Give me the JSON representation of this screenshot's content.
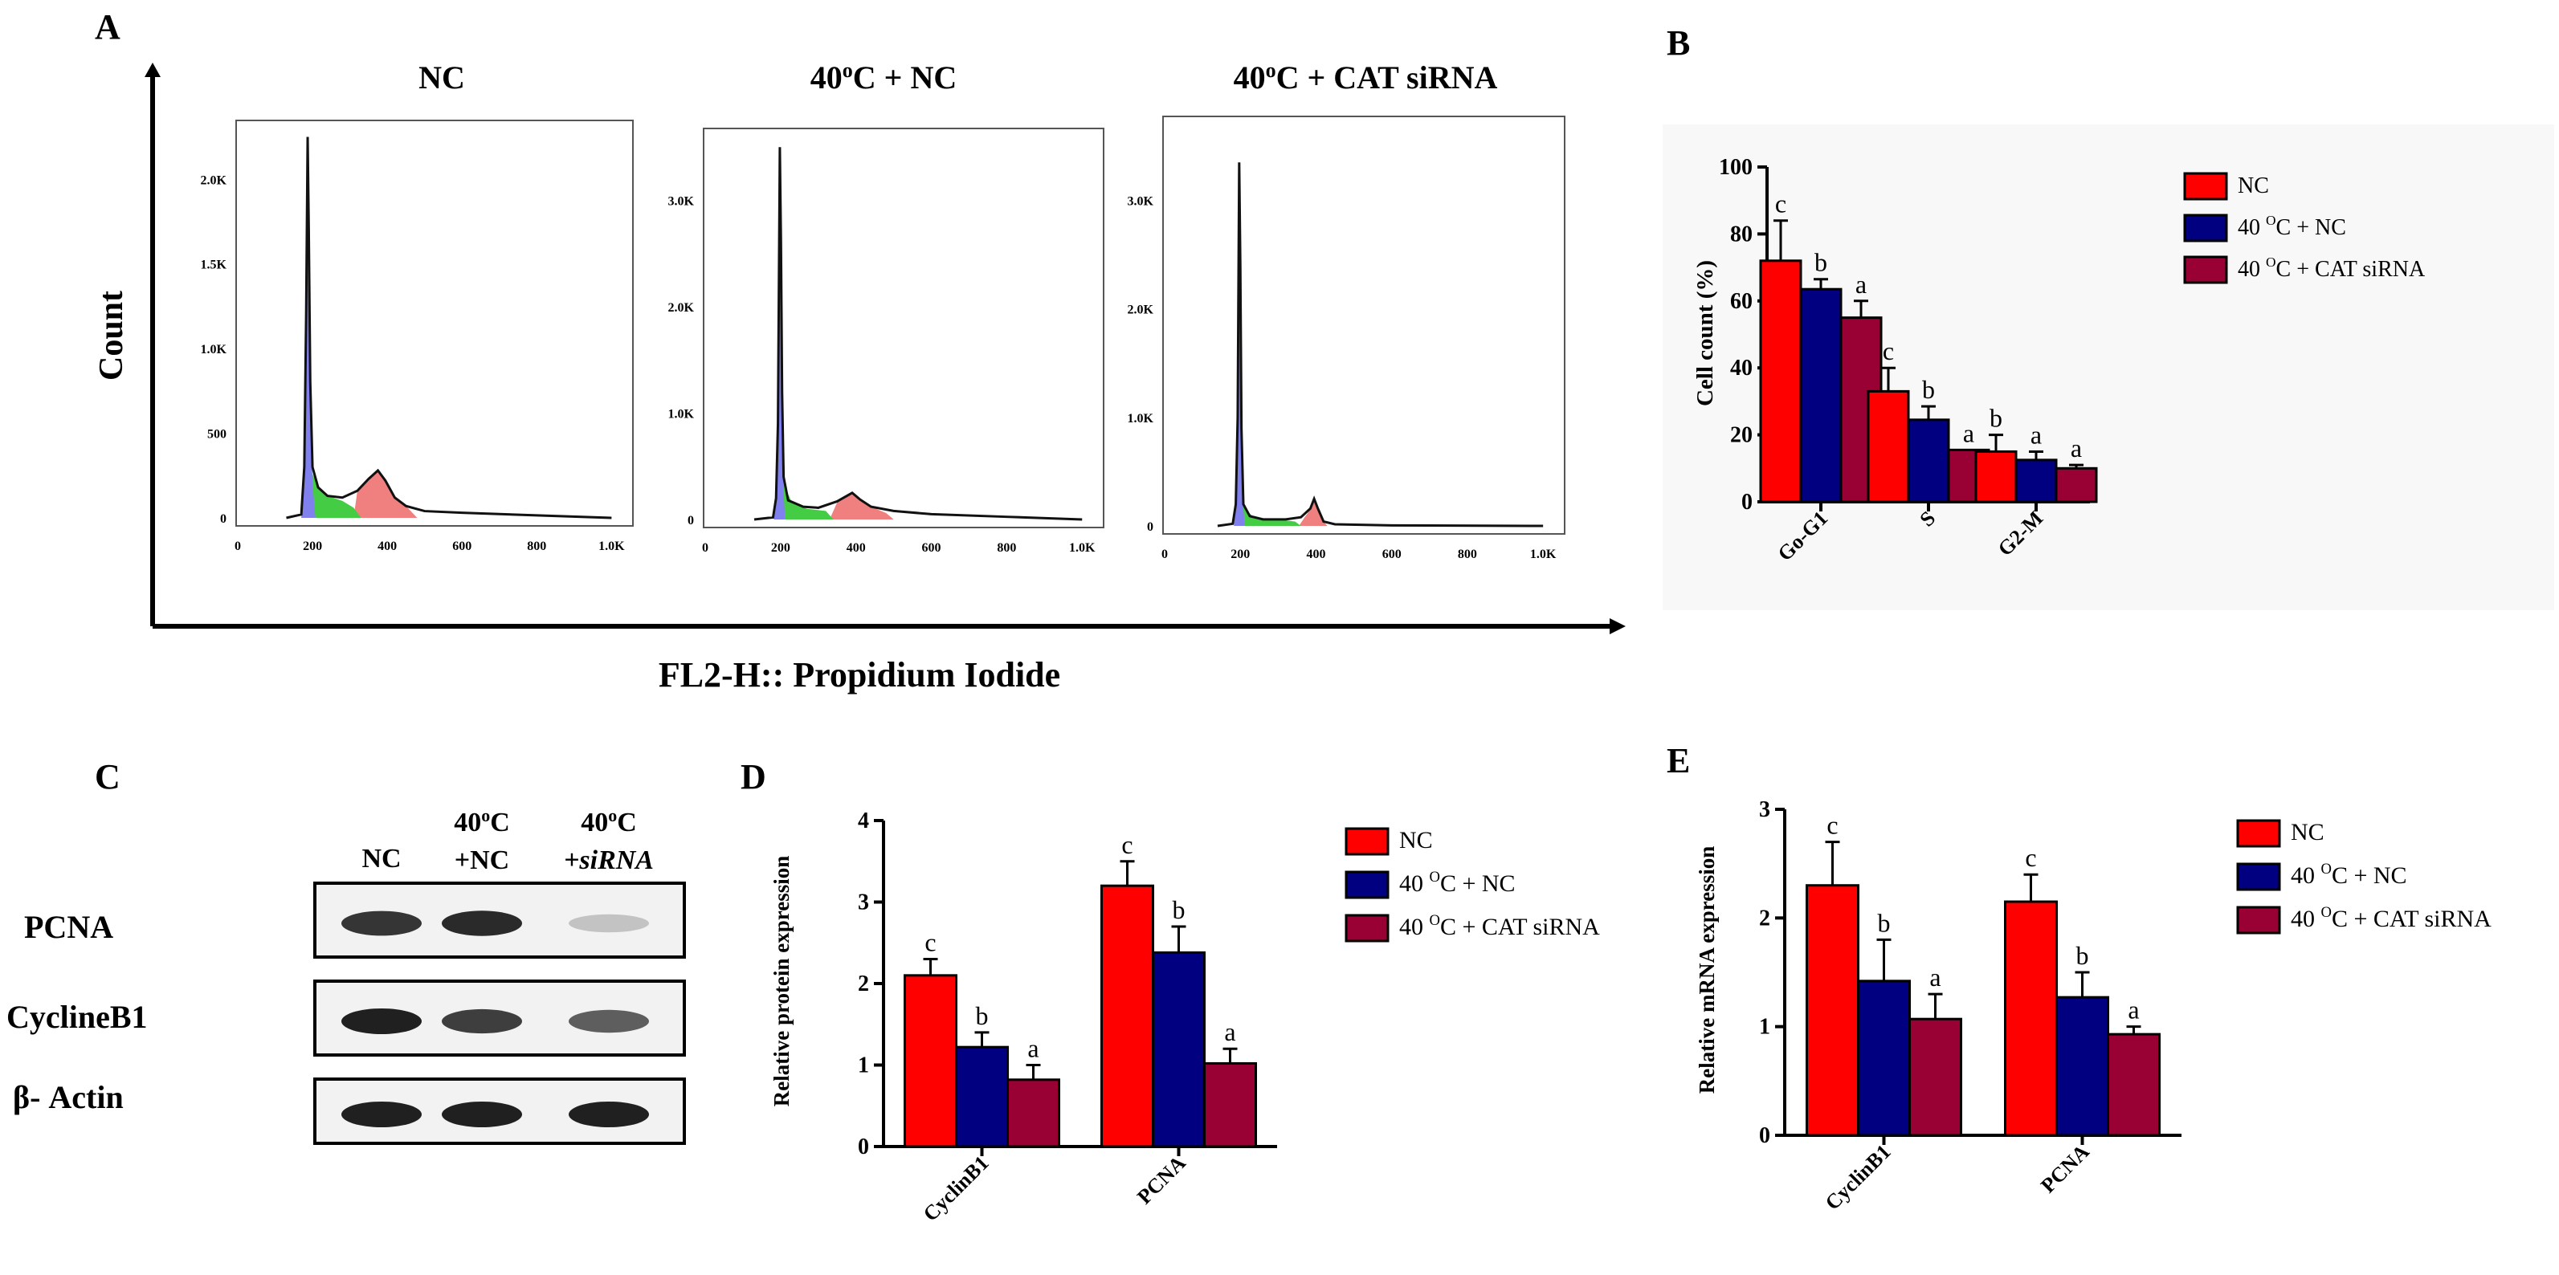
{
  "panels": {
    "A": {
      "label": "A",
      "ylabel": "Count",
      "xlabel": "FL2-H:: Propidium Iodide",
      "histograms": [
        {
          "title_prefix": "NC",
          "title_sup": "",
          "title_suffix": "",
          "y_ticks": [
            "0",
            "500",
            "1.0K",
            "1.5K",
            "2.0K"
          ],
          "y_tick_values": [
            0,
            500,
            1000,
            1500,
            2000
          ],
          "y_max": 2300,
          "x_ticks": [
            "0",
            "200",
            "400",
            "600",
            "800",
            "1.0K"
          ],
          "x_tick_values": [
            0,
            200,
            400,
            600,
            800,
            1000
          ],
          "x_max": 1040,
          "profile": [
            [
              130,
              0
            ],
            [
              170,
              20
            ],
            [
              178,
              300
            ],
            [
              183,
              1200
            ],
            [
              187,
              2250
            ],
            [
              190,
              1700
            ],
            [
              194,
              800
            ],
            [
              200,
              300
            ],
            [
              215,
              180
            ],
            [
              240,
              130
            ],
            [
              280,
              120
            ],
            [
              320,
              160
            ],
            [
              350,
              230
            ],
            [
              375,
              280
            ],
            [
              395,
              220
            ],
            [
              420,
              120
            ],
            [
              450,
              70
            ],
            [
              500,
              40
            ],
            [
              600,
              30
            ],
            [
              800,
              15
            ],
            [
              1000,
              0
            ]
          ],
          "g1": [
            [
              170,
              0
            ],
            [
              178,
              300
            ],
            [
              183,
              1100
            ],
            [
              187,
              2200
            ],
            [
              190,
              1650
            ],
            [
              194,
              700
            ],
            [
              200,
              200
            ],
            [
              208,
              0
            ]
          ],
          "s": [
            [
              195,
              0
            ],
            [
              197,
              300
            ],
            [
              200,
              260
            ],
            [
              215,
              180
            ],
            [
              240,
              130
            ],
            [
              280,
              100
            ],
            [
              310,
              60
            ],
            [
              330,
              0
            ]
          ],
          "g2": [
            [
              310,
              0
            ],
            [
              320,
              160
            ],
            [
              350,
              230
            ],
            [
              375,
              280
            ],
            [
              395,
              220
            ],
            [
              420,
              120
            ],
            [
              450,
              70
            ],
            [
              480,
              0
            ]
          ]
        },
        {
          "title_prefix": "40",
          "title_sup": "o",
          "title_suffix": "C + NC",
          "y_ticks": [
            "0",
            "1.0K",
            "2.0K",
            "3.0K"
          ],
          "y_tick_values": [
            0,
            1000,
            2000,
            3000
          ],
          "y_max": 3600,
          "x_ticks": [
            "0",
            "200",
            "400",
            "600",
            "800",
            "1.0K"
          ],
          "x_tick_values": [
            0,
            200,
            400,
            600,
            800,
            1000
          ],
          "x_max": 1040,
          "profile": [
            [
              130,
              0
            ],
            [
              180,
              20
            ],
            [
              188,
              200
            ],
            [
              193,
              900
            ],
            [
              198,
              3500
            ],
            [
              201,
              2600
            ],
            [
              204,
              1200
            ],
            [
              208,
              400
            ],
            [
              220,
              180
            ],
            [
              260,
              120
            ],
            [
              300,
              110
            ],
            [
              350,
              170
            ],
            [
              390,
              250
            ],
            [
              410,
              190
            ],
            [
              440,
              120
            ],
            [
              500,
              80
            ],
            [
              600,
              50
            ],
            [
              800,
              25
            ],
            [
              1000,
              0
            ]
          ],
          "g1": [
            [
              182,
              0
            ],
            [
              190,
              300
            ],
            [
              194,
              1100
            ],
            [
              198,
              3400
            ],
            [
              201,
              2500
            ],
            [
              204,
              1000
            ],
            [
              208,
              250
            ],
            [
              212,
              0
            ]
          ],
          "s": [
            [
              200,
              0
            ],
            [
              202,
              2300
            ],
            [
              205,
              1100
            ],
            [
              212,
              300
            ],
            [
              230,
              160
            ],
            [
              270,
              100
            ],
            [
              320,
              80
            ],
            [
              340,
              0
            ]
          ],
          "g2": [
            [
              330,
              0
            ],
            [
              350,
              160
            ],
            [
              390,
              240
            ],
            [
              410,
              190
            ],
            [
              440,
              120
            ],
            [
              480,
              60
            ],
            [
              500,
              0
            ]
          ]
        },
        {
          "title_prefix": "40",
          "title_sup": "o",
          "title_suffix": "C + CAT siRNA",
          "y_ticks": [
            "0",
            "1.0K",
            "2.0K",
            "3.0K"
          ],
          "y_tick_values": [
            0,
            1000,
            2000,
            3000
          ],
          "y_max": 3700,
          "x_ticks": [
            "0",
            "200",
            "400",
            "600",
            "800",
            "1.0K"
          ],
          "x_tick_values": [
            0,
            200,
            400,
            600,
            800,
            1000
          ],
          "x_max": 1040,
          "profile": [
            [
              140,
              0
            ],
            [
              180,
              20
            ],
            [
              188,
              200
            ],
            [
              193,
              1000
            ],
            [
              197,
              3350
            ],
            [
              200,
              2400
            ],
            [
              203,
              900
            ],
            [
              208,
              200
            ],
            [
              225,
              90
            ],
            [
              260,
              60
            ],
            [
              320,
              60
            ],
            [
              360,
              80
            ],
            [
              385,
              160
            ],
            [
              395,
              250
            ],
            [
              405,
              160
            ],
            [
              420,
              40
            ],
            [
              450,
              15
            ],
            [
              600,
              5
            ],
            [
              1000,
              0
            ]
          ],
          "g1": [
            [
              183,
              0
            ],
            [
              190,
              300
            ],
            [
              194,
              1200
            ],
            [
              197,
              3300
            ],
            [
              200,
              2300
            ],
            [
              203,
              800
            ],
            [
              207,
              200
            ],
            [
              212,
              0
            ]
          ],
          "s": [
            [
              199,
              0
            ],
            [
              201,
              1300
            ],
            [
              204,
              600
            ],
            [
              212,
              150
            ],
            [
              240,
              70
            ],
            [
              300,
              60
            ],
            [
              345,
              40
            ],
            [
              360,
              0
            ]
          ],
          "g2": [
            [
              355,
              0
            ],
            [
              370,
              80
            ],
            [
              385,
              150
            ],
            [
              395,
              240
            ],
            [
              405,
              160
            ],
            [
              420,
              40
            ],
            [
              430,
              0
            ]
          ]
        }
      ]
    },
    "B": {
      "label": "B",
      "ylabel": "Cell count (%)",
      "legend": [
        {
          "prefix": "NC",
          "sup": "",
          "suffix": ""
        },
        {
          "prefix": "40 ",
          "sup": "O",
          "suffix": "C + NC"
        },
        {
          "prefix": " 40 ",
          "sup": "O",
          "suffix": "C + CAT siRNA"
        }
      ]
    },
    "C": {
      "label": "C",
      "lane_labels": [
        {
          "line1": "NC",
          "line1_sup": "",
          "line1_suffix": "",
          "line2": ""
        },
        {
          "line1": "40",
          "line1_sup": "o",
          "line1_suffix": "C",
          "line2": "+NC"
        },
        {
          "line1": "40",
          "line1_sup": "o",
          "line1_suffix": "C",
          "line2": "+siRNA"
        }
      ],
      "rows": [
        {
          "name": "PCNA",
          "band_intensity": [
            0.9,
            0.95,
            0.2
          ]
        },
        {
          "name": "CyclineB1",
          "band_intensity": [
            1.0,
            0.85,
            0.7
          ]
        },
        {
          "name": "β- Actin",
          "band_intensity": [
            1.0,
            1.0,
            1.0
          ]
        }
      ]
    },
    "D": {
      "label": "D",
      "ylabel": "Relative protein expression",
      "legend": [
        {
          "prefix": "NC",
          "sup": "",
          "suffix": ""
        },
        {
          "prefix": "40 ",
          "sup": "O",
          "suffix": "C + NC"
        },
        {
          "prefix": " 40 ",
          "sup": "O",
          "suffix": "C + CAT siRNA"
        }
      ]
    },
    "E": {
      "label": "E",
      "ylabel": "Relative mRNA expression",
      "legend": [
        {
          "prefix": "NC",
          "sup": "",
          "suffix": ""
        },
        {
          "prefix": "40 ",
          "sup": "O",
          "suffix": "C + NC"
        },
        {
          "prefix": " 40 ",
          "sup": "O",
          "suffix": "C + CAT siRNA"
        }
      ]
    }
  },
  "colors": {
    "nc": "#ff0000",
    "heat_nc": "#000080",
    "heat_sirna": "#990033",
    "g1_fill": "#8080ee",
    "s_fill": "#44cc44",
    "g2_fill": "#f08080"
  },
  "chart_data": [
    {
      "panel": "B",
      "type": "bar",
      "categories": [
        "Go-G1",
        "S",
        "G2-M"
      ],
      "series": [
        {
          "name": "NC",
          "values": [
            72,
            33,
            15
          ],
          "errors": [
            12,
            7,
            5
          ],
          "letters": [
            "c",
            "c",
            "b"
          ]
        },
        {
          "name": "40 OC + NC",
          "values": [
            63.5,
            24.5,
            12.5
          ],
          "errors": [
            3,
            4,
            2.5
          ],
          "letters": [
            "b",
            "b",
            "a"
          ]
        },
        {
          "name": "40 OC + CAT siRNA",
          "values": [
            55,
            15.5,
            10
          ],
          "errors": [
            5,
            0,
            1
          ],
          "letters": [
            "a",
            "a",
            "a"
          ]
        }
      ],
      "ylabel": "Cell count (%)",
      "ylim": [
        0,
        100
      ],
      "y_ticks": [
        0,
        20,
        40,
        60,
        80,
        100
      ]
    },
    {
      "panel": "D",
      "type": "bar",
      "categories": [
        "CyclinB1",
        "PCNA"
      ],
      "series": [
        {
          "name": "NC",
          "values": [
            2.1,
            3.2
          ],
          "errors": [
            0.2,
            0.3
          ],
          "letters": [
            "c",
            "c"
          ]
        },
        {
          "name": "40 OC + NC",
          "values": [
            1.22,
            2.38
          ],
          "errors": [
            0.18,
            0.32
          ],
          "letters": [
            "b",
            "b"
          ]
        },
        {
          "name": "40 OC + CAT siRNA",
          "values": [
            0.82,
            1.02
          ],
          "errors": [
            0.18,
            0.18
          ],
          "letters": [
            "a",
            "a"
          ]
        }
      ],
      "ylabel": "Relative protein expression",
      "ylim": [
        0,
        4
      ],
      "y_ticks": [
        0,
        1,
        2,
        3,
        4
      ]
    },
    {
      "panel": "E",
      "type": "bar",
      "categories": [
        "CyclinB1",
        "PCNA"
      ],
      "series": [
        {
          "name": "NC",
          "values": [
            2.3,
            2.15
          ],
          "errors": [
            0.4,
            0.25
          ],
          "letters": [
            "c",
            "c"
          ]
        },
        {
          "name": "40 OC + NC",
          "values": [
            1.42,
            1.27
          ],
          "errors": [
            0.38,
            0.23
          ],
          "letters": [
            "b",
            "b"
          ]
        },
        {
          "name": "40 OC + CAT siRNA",
          "values": [
            1.07,
            0.93
          ],
          "errors": [
            0.23,
            0.07
          ],
          "letters": [
            "a",
            "a"
          ]
        }
      ],
      "ylabel": "Relative mRNA expression",
      "ylim": [
        0,
        3
      ],
      "y_ticks": [
        0,
        1,
        2,
        3
      ]
    }
  ]
}
